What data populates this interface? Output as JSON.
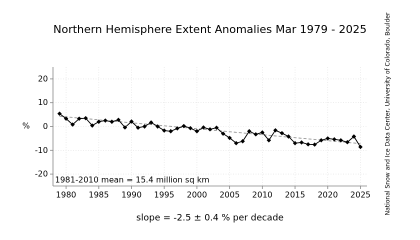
{
  "chart_data": {
    "type": "line",
    "title": "Northern Hemisphere Extent Anomalies Mar 1979 - 2025",
    "y_label": "%",
    "annotation": "1981-2010 mean = 15.4 million sq km",
    "footer": "slope = -2.5 ± 0.4 % per decade",
    "source": "National Snow and Ice Data Center, University of Colorado, Boulder",
    "x": [
      1979,
      1980,
      1981,
      1982,
      1983,
      1984,
      1985,
      1986,
      1987,
      1988,
      1989,
      1990,
      1991,
      1992,
      1993,
      1994,
      1995,
      1996,
      1997,
      1998,
      1999,
      2000,
      2001,
      2002,
      2003,
      2004,
      2005,
      2006,
      2007,
      2008,
      2009,
      2010,
      2011,
      2012,
      2013,
      2014,
      2015,
      2016,
      2017,
      2018,
      2019,
      2020,
      2021,
      2022,
      2023,
      2024,
      2025
    ],
    "series": [
      {
        "color": "#000000",
        "values": [
          5.4,
          3.3,
          0.8,
          3.3,
          3.5,
          0.4,
          2,
          2.5,
          2,
          2.8,
          -0.4,
          2.1,
          -0.5,
          0,
          1.7,
          0,
          -1.7,
          -2,
          -0.8,
          0.2,
          -0.7,
          -2,
          -0.4,
          -1.2,
          -0.5,
          -3,
          -4.8,
          -7,
          -6.2,
          -2,
          -3.3,
          -2.5,
          -5.8,
          -1.6,
          -2.8,
          -4.2,
          -7,
          -6.7,
          -7.5,
          -7.6,
          -5.8,
          -5,
          -5.4,
          -5.8,
          -6.6,
          -4.2,
          -8.6
        ]
      }
    ],
    "trend": {
      "x": [
        1979,
        2025
      ],
      "values": [
        4.3,
        -7.2
      ],
      "color": "#999999"
    },
    "xlim": [
      1978,
      2026
    ],
    "ylim": [
      -25,
      25
    ],
    "xticks": [
      1980,
      1985,
      1990,
      1995,
      2000,
      2005,
      2010,
      2015,
      2020,
      2025
    ],
    "yticks": [
      -20,
      -10,
      0,
      10,
      20
    ],
    "grid": true
  }
}
